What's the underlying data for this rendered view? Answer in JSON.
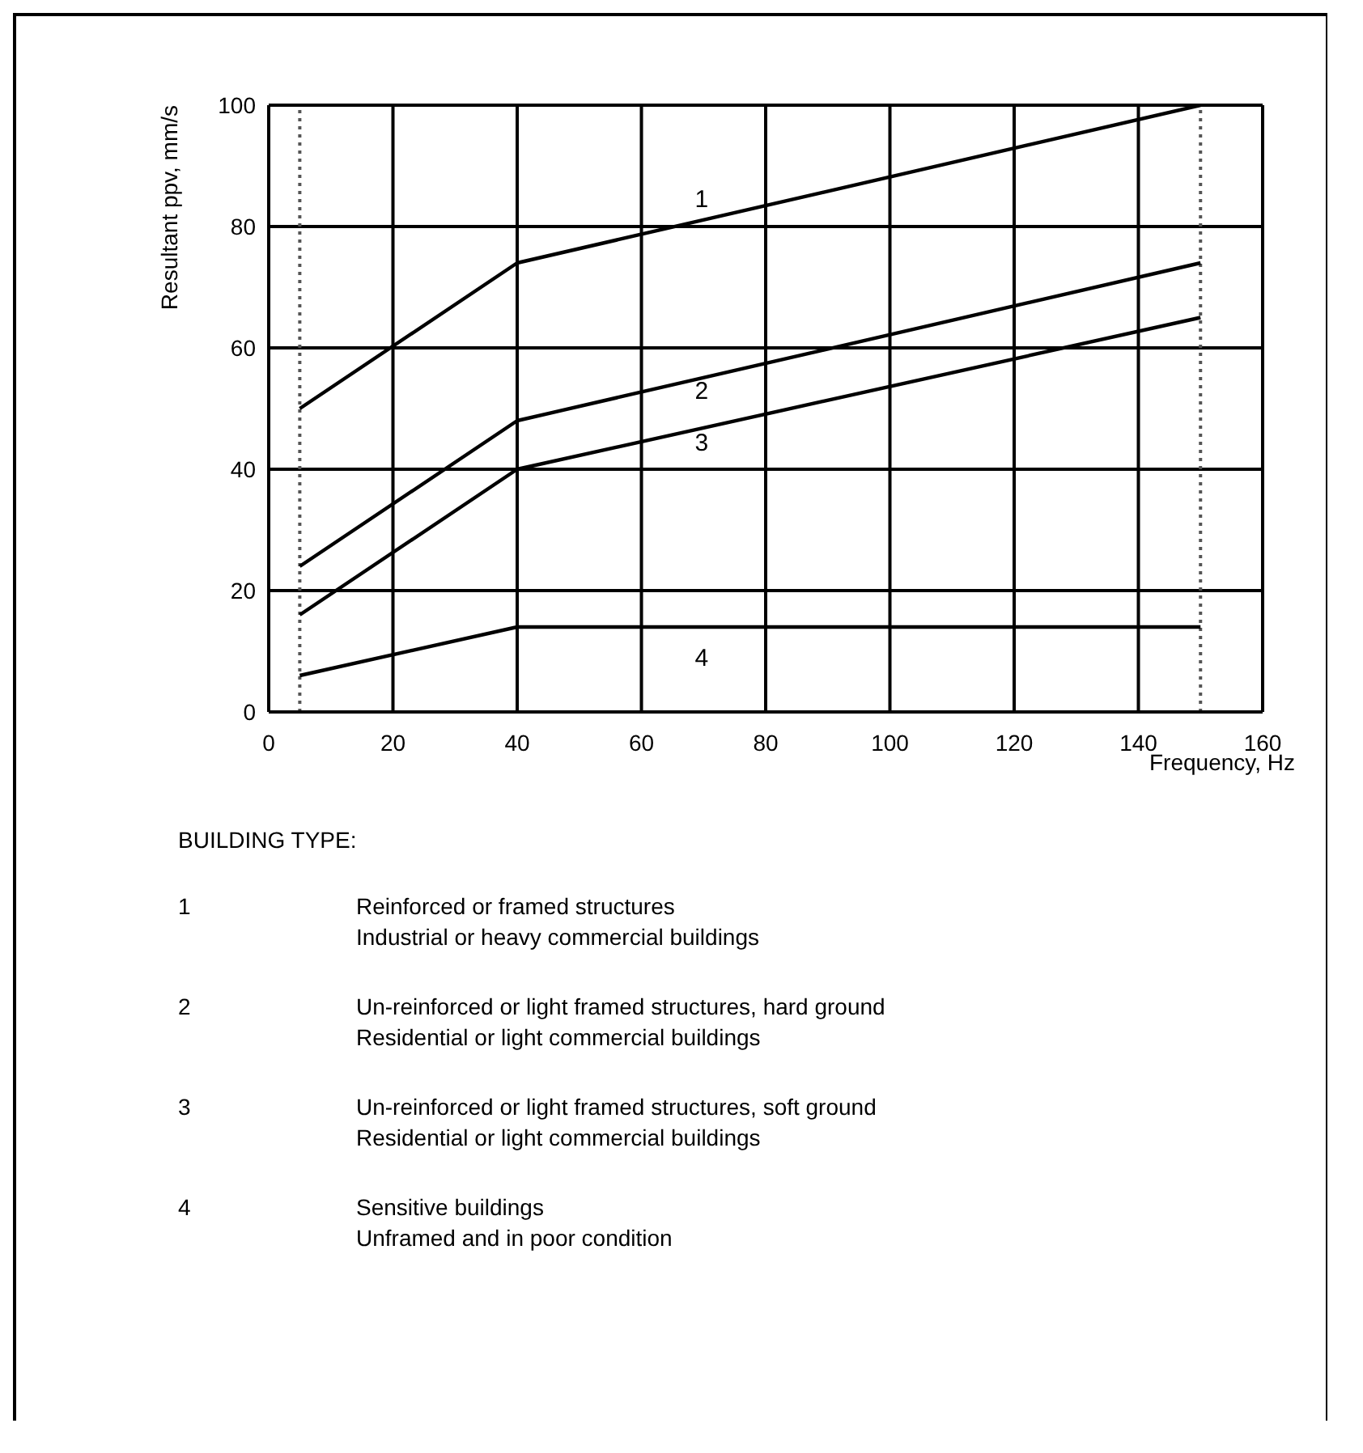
{
  "chart_data": {
    "type": "line",
    "x": [
      5,
      40,
      150
    ],
    "series": [
      {
        "name": "1",
        "color": "#000000",
        "values": [
          50,
          74,
          100
        ]
      },
      {
        "name": "2",
        "color": "#000000",
        "values": [
          24,
          48,
          74
        ]
      },
      {
        "name": "3",
        "color": "#000000",
        "values": [
          16,
          40,
          65
        ]
      },
      {
        "name": "4",
        "color": "#000000",
        "values": [
          6,
          14,
          14
        ]
      }
    ],
    "xlabel": "Frequency, Hz",
    "ylabel": "Resultant ppv, mm/s",
    "xlim": [
      0,
      160
    ],
    "xticks": [
      0,
      20,
      40,
      60,
      80,
      100,
      120,
      140,
      160
    ],
    "ylim": [
      0,
      100
    ],
    "yticks": [
      0,
      20,
      40,
      60,
      80,
      100
    ],
    "grid": true,
    "legend": false,
    "marker": "none",
    "line_style": "solid",
    "ref_lines": [
      {
        "axis": "x",
        "value": 5,
        "line_style": "dotted"
      },
      {
        "axis": "x",
        "value": 150,
        "line_style": "dotted"
      }
    ],
    "annotations": [
      "BUILDING TYPE:",
      "1",
      "Reinforced or framed structures",
      "Industrial or heavy commercial buildings",
      "2",
      "Un-reinforced or light framed structures, hard ground",
      "Residential or light commercial buildings",
      "3",
      "Un-reinforced or light framed structures, soft ground",
      "Residential or light commercial buildings",
      "4",
      "Sensitive buildings",
      "Unframed and in poor condition"
    ]
  }
}
